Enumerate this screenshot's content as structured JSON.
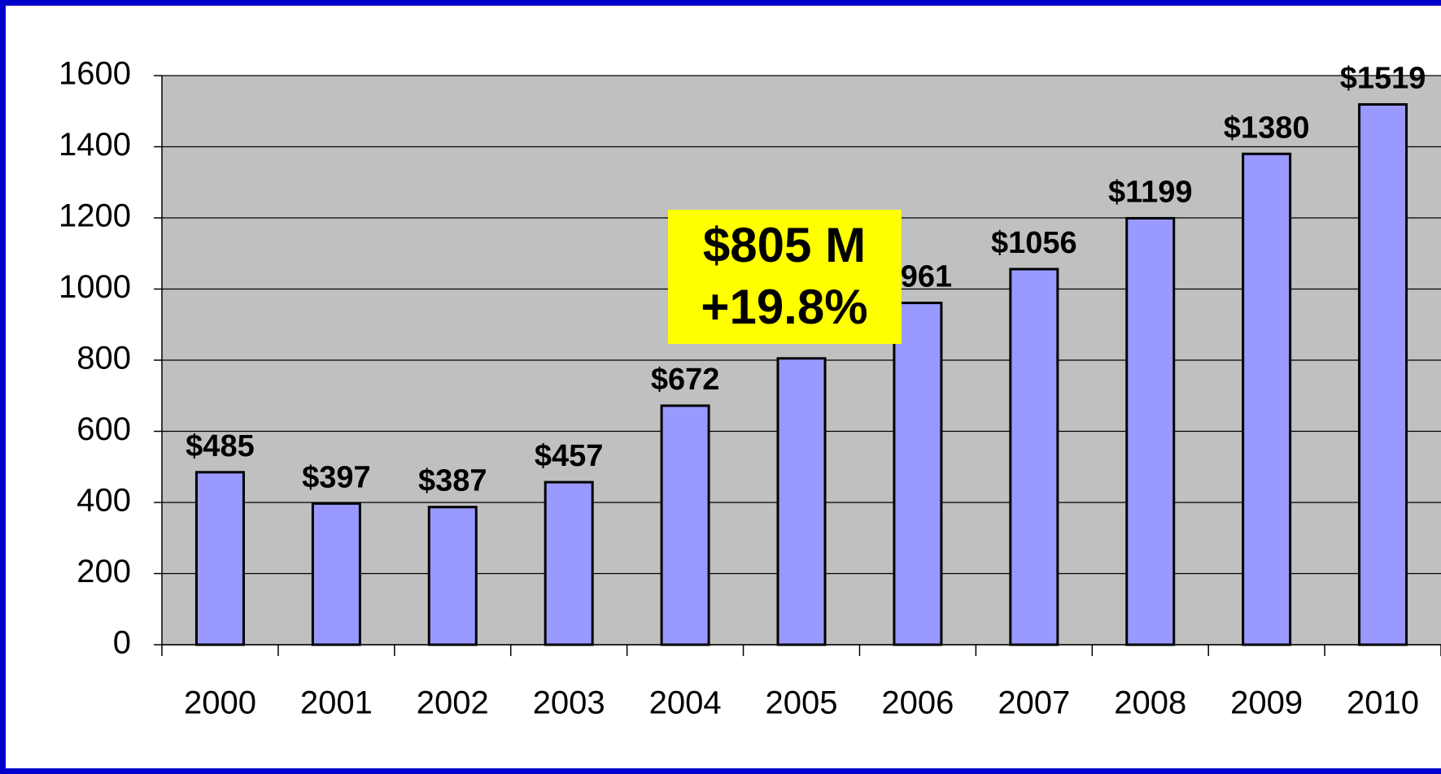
{
  "chart_data": {
    "type": "bar",
    "categories": [
      "2000",
      "2001",
      "2002",
      "2003",
      "2004",
      "2005",
      "2006",
      "2007",
      "2008",
      "2009",
      "2010"
    ],
    "values": [
      485,
      397,
      387,
      457,
      672,
      805,
      961,
      1056,
      1199,
      1380,
      1519
    ],
    "value_labels": [
      "$485",
      "$397",
      "$387",
      "$457",
      "$672",
      null,
      "$961",
      "$1056",
      "$1199",
      "$1380",
      "$1519"
    ],
    "color": "#9999ff",
    "ylim": [
      0,
      1600
    ],
    "yticks": [
      0,
      200,
      400,
      600,
      800,
      1000,
      1200,
      1400,
      1600
    ],
    "grid": true,
    "annotation": [
      "$805 M",
      "+19.8%"
    ],
    "annotation_color": "#ffff00"
  }
}
